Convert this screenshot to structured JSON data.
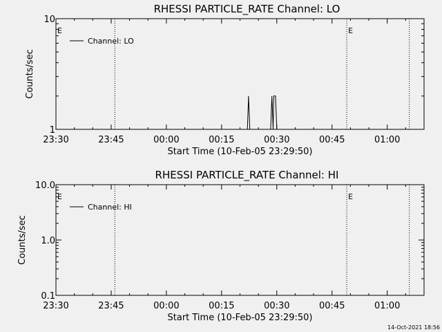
{
  "chart_data": [
    {
      "type": "line",
      "title": "RHESSI PARTICLE_RATE Channel: LO",
      "xlabel": "Start Time (10-Feb-05 23:29:50)",
      "ylabel": "Counts/sec",
      "y_scale": "log",
      "ylim": [
        1,
        10
      ],
      "xlim": [
        "23:30",
        "01:10"
      ],
      "x_ticks": [
        "23:30",
        "23:45",
        "00:00",
        "00:15",
        "00:30",
        "00:45",
        "01:00"
      ],
      "y_ticks": [
        "1",
        "10"
      ],
      "legend": {
        "position": "top-left",
        "entries": [
          "Channel: LO"
        ]
      },
      "markers": [
        {
          "time": "23:30",
          "label": "E",
          "line": false
        },
        {
          "time": "23:46",
          "label": "",
          "line": true
        },
        {
          "time": "00:49",
          "label": "E",
          "line": true
        },
        {
          "time": "01:06",
          "label": "",
          "line": true
        }
      ],
      "series": [
        {
          "name": "Channel: LO",
          "segments": [
            [
              [
                "00:22:00",
                1
              ],
              [
                "00:22:20",
                2
              ],
              [
                "00:22:40",
                1
              ]
            ],
            [
              [
                "00:28:20",
                1
              ],
              [
                "00:28:40",
                2
              ],
              [
                "00:29:00",
                1
              ],
              [
                "00:29:10",
                2
              ],
              [
                "00:29:40",
                2
              ],
              [
                "00:30:00",
                1
              ]
            ]
          ]
        }
      ]
    },
    {
      "type": "line",
      "title": "RHESSI PARTICLE_RATE Channel: HI",
      "xlabel": "Start Time (10-Feb-05 23:29:50)",
      "ylabel": "Counts/sec",
      "y_scale": "log",
      "ylim": [
        0.1,
        10
      ],
      "xlim": [
        "23:30",
        "01:10"
      ],
      "x_ticks": [
        "23:30",
        "23:45",
        "00:00",
        "00:15",
        "00:30",
        "00:45",
        "01:00"
      ],
      "y_ticks": [
        "0.1",
        "1.0",
        "10.0"
      ],
      "legend": {
        "position": "top-left",
        "entries": [
          "Channel: HI"
        ]
      },
      "markers": [
        {
          "time": "23:30",
          "label": "E",
          "line": false
        },
        {
          "time": "23:46",
          "label": "",
          "line": true
        },
        {
          "time": "00:49",
          "label": "E",
          "line": true
        },
        {
          "time": "01:06",
          "label": "",
          "line": true
        }
      ],
      "series": [
        {
          "name": "Channel: HI",
          "segments": []
        }
      ]
    }
  ],
  "footer": {
    "timestamp": "14-Oct-2021 18:56"
  },
  "colors": {
    "background": "#f0f0f0",
    "foreground": "#000000"
  }
}
